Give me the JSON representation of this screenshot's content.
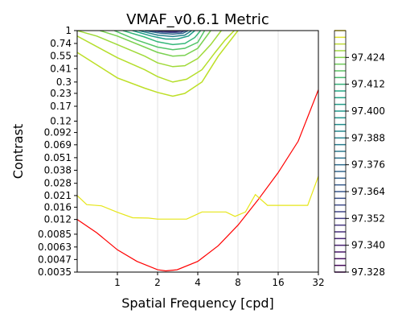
{
  "chart_data": {
    "type": "line",
    "title": "VMAF_v0.6.1 Metric",
    "xlabel": "Spatial Frequency [cpd]",
    "ylabel": "Contrast",
    "x_scale": "log2",
    "y_scale": "log",
    "xlim": [
      0.5,
      32
    ],
    "ylim": [
      0.0035,
      1
    ],
    "x_ticks": [
      1,
      2,
      4,
      8,
      16,
      32
    ],
    "x_tick_labels": [
      "1",
      "2",
      "4",
      "8",
      "16",
      "32"
    ],
    "y_ticks": [
      1,
      0.74,
      0.55,
      0.41,
      0.3,
      0.23,
      0.17,
      0.12,
      0.092,
      0.069,
      0.051,
      0.038,
      0.028,
      0.021,
      0.016,
      0.012,
      0.0085,
      0.0063,
      0.0047,
      0.0035
    ],
    "y_tick_labels": [
      "1",
      "0.74",
      "0.55",
      "0.41",
      "0.3",
      "0.23",
      "0.17",
      "0.12",
      "0.092",
      "0.069",
      "0.051",
      "0.038",
      "0.028",
      "0.021",
      "0.016",
      "0.012",
      "0.0085",
      "0.0063",
      "0.0047",
      "0.0035"
    ],
    "grid": "vertical",
    "grid_x": [
      1,
      2,
      4,
      8,
      16
    ],
    "series": [
      {
        "color": "#ff0000",
        "x": [
          0.5,
          0.7,
          1.0,
          1.4,
          2.0,
          2.3,
          2.8,
          4.0,
          5.7,
          8.0,
          11.3,
          16.0,
          22.6,
          32.0
        ],
        "y": [
          0.012,
          0.0088,
          0.0059,
          0.0045,
          0.0037,
          0.0036,
          0.0037,
          0.0045,
          0.0065,
          0.0105,
          0.019,
          0.036,
          0.075,
          0.25
        ]
      },
      {
        "color": "#e6e619",
        "x": [
          0.5,
          0.59,
          0.76,
          1.0,
          1.3,
          1.7,
          2.0,
          2.6,
          3.3,
          4.3,
          5.6,
          6.5,
          7.6,
          9.1,
          10.8,
          13.3,
          17.5,
          22.5,
          26.6,
          32.0
        ],
        "y": [
          0.021,
          0.017,
          0.0165,
          0.0142,
          0.0125,
          0.0124,
          0.0121,
          0.0121,
          0.0121,
          0.0143,
          0.0143,
          0.0143,
          0.0129,
          0.0143,
          0.0215,
          0.0167,
          0.0167,
          0.0167,
          0.0167,
          0.033
        ]
      }
    ],
    "contours": [
      {
        "color": "#bddf26",
        "x": [
          0.5,
          1.0,
          1.6,
          2.0,
          2.6,
          3.2,
          4.3,
          5.7,
          8.0
        ],
        "y": [
          0.6,
          0.33,
          0.26,
          0.235,
          0.215,
          0.23,
          0.3,
          0.55,
          1.0
        ]
      },
      {
        "color": "#b5de2b",
        "x": [
          0.5,
          1.0,
          1.6,
          2.0,
          2.6,
          3.3,
          4.3,
          5.4,
          6.4,
          7.5
        ],
        "y": [
          0.88,
          0.53,
          0.4,
          0.34,
          0.3,
          0.32,
          0.4,
          0.6,
          0.8,
          1.0
        ]
      },
      {
        "color": "#a0da39",
        "x": [
          0.5,
          0.7,
          1.0,
          1.6,
          2.0,
          2.6,
          3.2,
          4.0,
          5.0,
          6.0
        ],
        "y": [
          1.0,
          0.88,
          0.72,
          0.55,
          0.47,
          0.43,
          0.44,
          0.52,
          0.72,
          1.0
        ]
      },
      {
        "color": "#7ad151",
        "x": [
          0.74,
          1.0,
          1.6,
          2.0,
          2.6,
          3.2,
          4.0,
          5.0
        ],
        "y": [
          1.0,
          0.88,
          0.68,
          0.6,
          0.55,
          0.56,
          0.66,
          1.0
        ]
      },
      {
        "color": "#54c568",
        "x": [
          0.95,
          1.4,
          2.0,
          2.6,
          3.2,
          4.0,
          4.5
        ],
        "y": [
          1.0,
          0.8,
          0.68,
          0.64,
          0.66,
          0.76,
          1.0
        ]
      },
      {
        "color": "#35b779",
        "x": [
          1.1,
          1.6,
          2.0,
          2.6,
          3.2,
          3.8,
          4.2
        ],
        "y": [
          1.0,
          0.86,
          0.77,
          0.72,
          0.74,
          0.85,
          1.0
        ]
      },
      {
        "color": "#1f9e89",
        "x": [
          1.3,
          1.8,
          2.3,
          2.8,
          3.4,
          3.8
        ],
        "y": [
          1.0,
          0.88,
          0.82,
          0.82,
          0.88,
          1.0
        ]
      },
      {
        "color": "#26828e",
        "x": [
          1.45,
          2.0,
          2.6,
          3.2,
          3.6
        ],
        "y": [
          1.0,
          0.9,
          0.87,
          0.9,
          1.0
        ]
      },
      {
        "color": "#31688e",
        "x": [
          1.6,
          2.1,
          2.6,
          3.1,
          3.4
        ],
        "y": [
          1.0,
          0.94,
          0.92,
          0.94,
          1.0
        ]
      },
      {
        "color": "#3e4989",
        "x": [
          1.75,
          2.2,
          2.6,
          3.0,
          3.25
        ],
        "y": [
          1.0,
          0.965,
          0.955,
          0.965,
          1.0
        ]
      },
      {
        "color": "#46327e",
        "x": [
          1.9,
          2.3,
          2.65,
          3.05
        ],
        "y": [
          1.0,
          0.985,
          0.98,
          1.0
        ]
      }
    ],
    "colorbar": {
      "tick_labels": [
        "97.424",
        "97.412",
        "97.400",
        "97.388",
        "97.376",
        "97.364",
        "97.352",
        "97.340",
        "97.328"
      ],
      "tick_values": [
        97.424,
        97.412,
        97.4,
        97.388,
        97.376,
        97.364,
        97.352,
        97.34,
        97.328
      ],
      "range": [
        97.328,
        97.436
      ],
      "level_step": 0.003,
      "colormap": "viridis"
    }
  }
}
